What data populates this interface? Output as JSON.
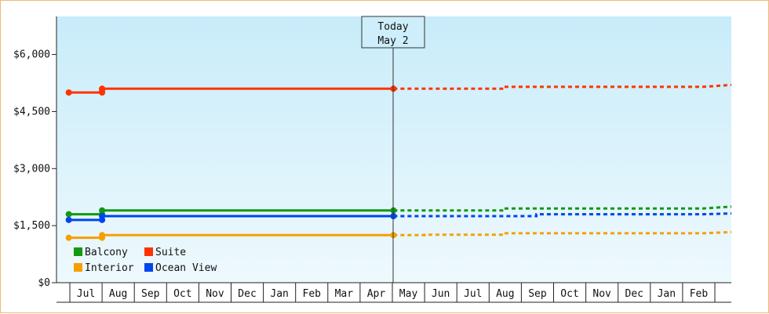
{
  "chart_data": {
    "type": "line",
    "y_axis": {
      "min": 0,
      "max": 7000,
      "ticks": [
        0,
        1500,
        3000,
        4500,
        6000
      ],
      "tick_labels": [
        "$0",
        "$1,500",
        "$3,000",
        "$4,500",
        "$6,000"
      ]
    },
    "x_axis": {
      "months": [
        "Jul",
        "Aug",
        "Sep",
        "Oct",
        "Nov",
        "Dec",
        "Jan",
        "Feb",
        "Mar",
        "Apr",
        "May",
        "Jun",
        "Jul",
        "Aug",
        "Sep",
        "Oct",
        "Nov",
        "Dec",
        "Jan",
        "Feb"
      ]
    },
    "today_marker": {
      "line1": "Today",
      "line2": "May 2"
    },
    "legend": {
      "placement": "bottom-left"
    },
    "series": [
      {
        "name": "Suite",
        "color": "#ff3300",
        "history": [
          [
            "Jun 30",
            5000
          ],
          [
            "Jul 31",
            5000
          ],
          [
            "Jul 31",
            5050
          ],
          [
            "Jul 31",
            5100
          ],
          [
            "May 2",
            5100
          ]
        ],
        "forecast": [
          [
            "May 2",
            5100
          ],
          [
            "Jun 15",
            5100
          ],
          [
            "Aug 15",
            5150
          ],
          [
            "Feb 20",
            5200
          ]
        ]
      },
      {
        "name": "Balcony",
        "color": "#119911",
        "history": [
          [
            "Jun 30",
            1800
          ],
          [
            "Jul 31",
            1800
          ],
          [
            "Jul 31",
            1900
          ],
          [
            "May 2",
            1900
          ]
        ],
        "forecast": [
          [
            "May 2",
            1900
          ],
          [
            "Jun 1",
            1900
          ],
          [
            "Aug 15",
            1950
          ],
          [
            "Feb 20",
            2000
          ]
        ]
      },
      {
        "name": "Ocean View",
        "color": "#0044ee",
        "history": [
          [
            "Jun 30",
            1650
          ],
          [
            "Jul 31",
            1650
          ],
          [
            "Jul 31",
            1750
          ],
          [
            "May 2",
            1750
          ]
        ],
        "forecast": [
          [
            "May 2",
            1750
          ],
          [
            "Jun 1",
            1750
          ],
          [
            "Sep 15",
            1800
          ],
          [
            "Feb 20",
            1820
          ]
        ]
      },
      {
        "name": "Interior",
        "color": "#f5a000",
        "history": [
          [
            "Jun 30",
            1180
          ],
          [
            "Jul 31",
            1180
          ],
          [
            "Jul 31",
            1250
          ],
          [
            "May 2",
            1250
          ]
        ],
        "forecast": [
          [
            "May 2",
            1250
          ],
          [
            "Jun 1",
            1260
          ],
          [
            "Aug 15",
            1300
          ],
          [
            "Feb 20",
            1330
          ]
        ]
      }
    ]
  }
}
